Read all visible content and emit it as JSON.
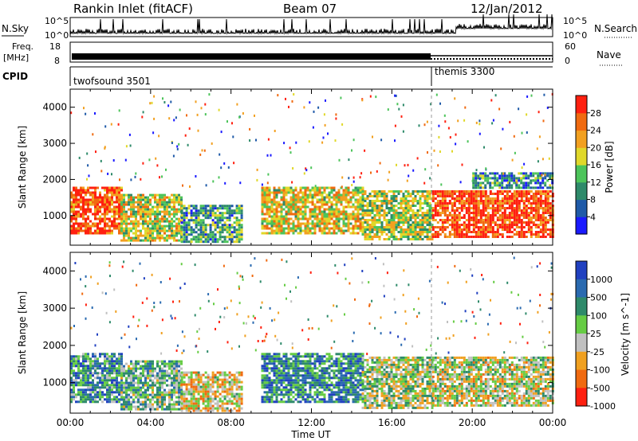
{
  "header": {
    "station": "Rankin Inlet (fitACF)",
    "beam": "Beam 07",
    "date": "12/Jan/2012"
  },
  "strip": {
    "nsky_label": "N.Sky",
    "nsky_ticks": [
      "10^5",
      "10^0"
    ],
    "nsearch_label": "N.Search",
    "nsearch_ticks": [
      "10^5",
      "10^0"
    ],
    "freq_label": "Freq.",
    "freq_unit": "[MHz]",
    "freq_ticks": [
      "18",
      "8"
    ],
    "nave_label": "Nave",
    "nave_ticks": [
      "60",
      "0"
    ],
    "cpid_label": "CPID",
    "cpid_modes": [
      {
        "name": "twofsound 3501",
        "start_hour": 0
      },
      {
        "name": "themis 3300",
        "start_hour": 18
      }
    ]
  },
  "chart_data": [
    {
      "type": "heatmap",
      "name": "power",
      "xlabel": "Time UT",
      "ylabel": "Slant Range [km]",
      "x_ticks": [
        "00:00",
        "04:00",
        "08:00",
        "12:00",
        "16:00",
        "20:00",
        "00:00"
      ],
      "x_range_hours": [
        0,
        24
      ],
      "y_ticks": [
        1000,
        2000,
        3000,
        4000
      ],
      "y_range_km": [
        180,
        4500
      ],
      "colorbar_label": "Power [dB]",
      "colorbar_ticks": [
        "4",
        "8",
        "12",
        "16",
        "20",
        "24",
        "28"
      ],
      "colorbar_colors": [
        "#1a1aff",
        "#1f5aa8",
        "#2e8a6a",
        "#4cc45a",
        "#e0d82a",
        "#f2a020",
        "#f06a10",
        "#ff2010"
      ],
      "bands": [
        {
          "start_hour": 0.0,
          "end_hour": 2.5,
          "min_km": 500,
          "max_km": 1800,
          "level": 0.85
        },
        {
          "start_hour": 2.5,
          "end_hour": 5.5,
          "min_km": 300,
          "max_km": 1600,
          "level": 0.55
        },
        {
          "start_hour": 5.5,
          "end_hour": 8.5,
          "min_km": 250,
          "max_km": 1300,
          "level": 0.35
        },
        {
          "start_hour": 9.5,
          "end_hour": 14.5,
          "min_km": 500,
          "max_km": 1800,
          "level": 0.6
        },
        {
          "start_hour": 14.5,
          "end_hour": 18.0,
          "min_km": 350,
          "max_km": 1700,
          "level": 0.5
        },
        {
          "start_hour": 18.0,
          "end_hour": 24.0,
          "min_km": 400,
          "max_km": 1700,
          "level": 0.9
        },
        {
          "start_hour": 20.0,
          "end_hour": 24.0,
          "min_km": 1800,
          "max_km": 2200,
          "level": 0.3
        }
      ]
    },
    {
      "type": "heatmap",
      "name": "velocity",
      "xlabel": "Time UT",
      "ylabel": "Slant Range [km]",
      "x_ticks": [
        "00:00",
        "04:00",
        "08:00",
        "12:00",
        "16:00",
        "20:00",
        "00:00"
      ],
      "x_range_hours": [
        0,
        24
      ],
      "y_ticks": [
        1000,
        2000,
        3000,
        4000
      ],
      "y_range_km": [
        180,
        4500
      ],
      "colorbar_label": "Velocity [m s^-1]",
      "colorbar_ticks": [
        "1000",
        "500",
        "100",
        "25",
        "-25",
        "-100",
        "-500",
        "-1000"
      ],
      "colorbar_colors": [
        "#2040c0",
        "#2a6ab0",
        "#2e8a6a",
        "#66cc44",
        "#c0c0c0",
        "#f0a020",
        "#f06a10",
        "#ff2010"
      ],
      "bands": [
        {
          "start_hour": 0.0,
          "end_hour": 2.5,
          "min_km": 500,
          "max_km": 1800,
          "level": 0.7
        },
        {
          "start_hour": 2.5,
          "end_hour": 5.5,
          "min_km": 300,
          "max_km": 1600,
          "level": 0.6
        },
        {
          "start_hour": 5.5,
          "end_hour": 8.5,
          "min_km": 250,
          "max_km": 1300,
          "level": 0.4
        },
        {
          "start_hour": 9.5,
          "end_hour": 14.5,
          "min_km": 500,
          "max_km": 1800,
          "level": 0.75
        },
        {
          "start_hour": 14.5,
          "end_hour": 18.0,
          "min_km": 350,
          "max_km": 1700,
          "level": 0.5
        },
        {
          "start_hour": 18.0,
          "end_hour": 24.0,
          "min_km": 400,
          "max_km": 1700,
          "level": 0.45
        }
      ]
    }
  ]
}
